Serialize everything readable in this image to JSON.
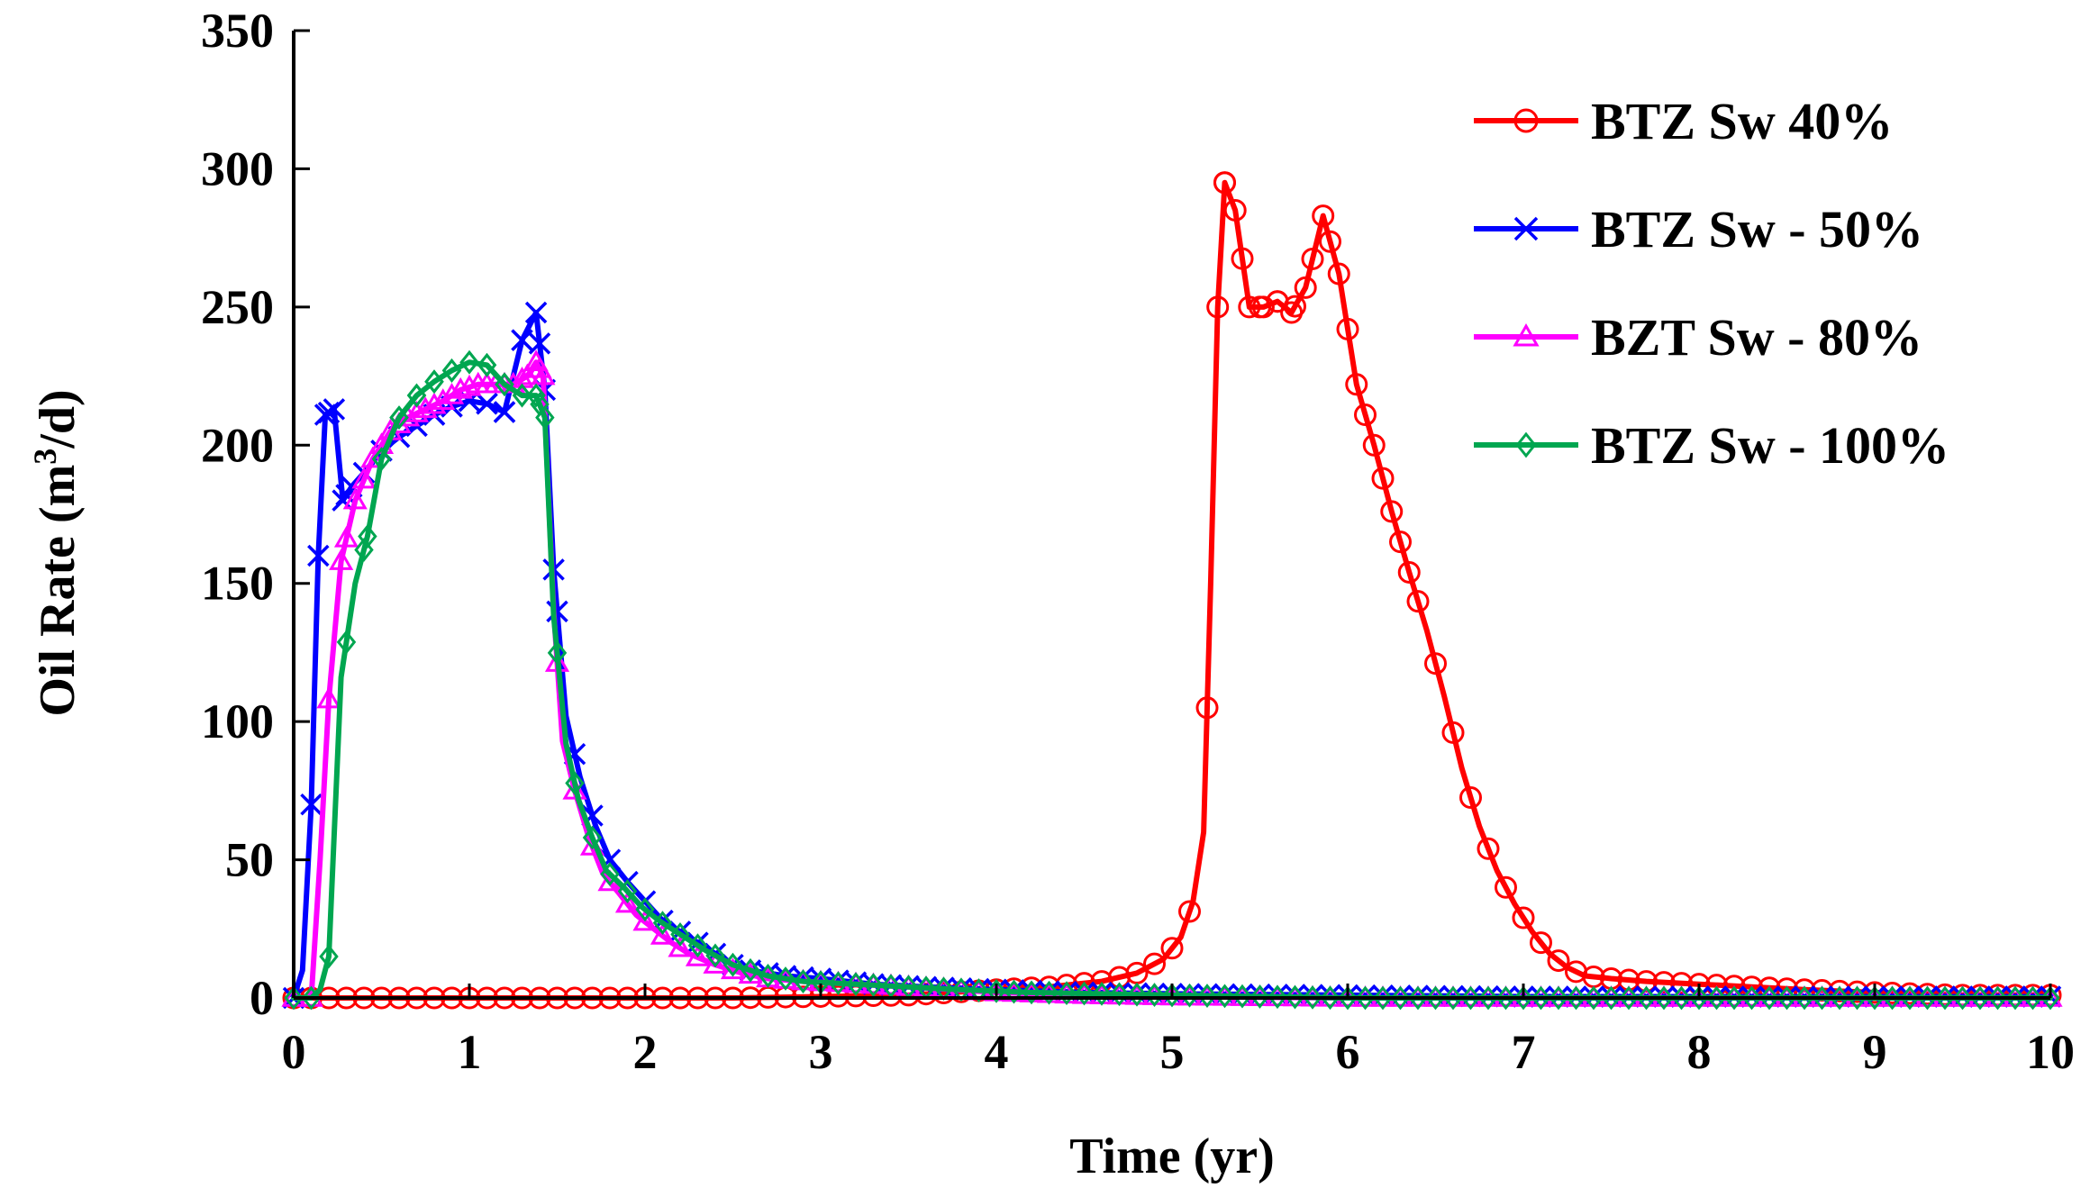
{
  "chart_data": {
    "type": "line",
    "title": "",
    "xlabel": "Time  (yr)",
    "ylabel": "Oil Rate (m³/d)",
    "ylabel_parts": {
      "pre": "Oil Rate (m",
      "sup": "3",
      "post": "/d)"
    },
    "xlim": [
      0,
      10
    ],
    "ylim": [
      0,
      350
    ],
    "xticks": [
      "0",
      "1",
      "2",
      "3",
      "4",
      "5",
      "6",
      "7",
      "8",
      "9",
      "10"
    ],
    "yticks": [
      "0",
      "50",
      "100",
      "150",
      "200",
      "250",
      "300",
      "350"
    ],
    "grid": false,
    "legend_position": "top-right",
    "series": [
      {
        "name": "BTZ Sw 40%",
        "color": "#ff0000",
        "marker": "circle",
        "points": [
          [
            0,
            0
          ],
          [
            0.2,
            0
          ],
          [
            0.5,
            0
          ],
          [
            1,
            0
          ],
          [
            1.5,
            0
          ],
          [
            2,
            0
          ],
          [
            2.5,
            0
          ],
          [
            3,
            0.5
          ],
          [
            3.5,
            1
          ],
          [
            4,
            3
          ],
          [
            4.3,
            4
          ],
          [
            4.6,
            6
          ],
          [
            4.8,
            9
          ],
          [
            4.95,
            14
          ],
          [
            5.05,
            22
          ],
          [
            5.12,
            35
          ],
          [
            5.18,
            60
          ],
          [
            5.22,
            150
          ],
          [
            5.26,
            250
          ],
          [
            5.3,
            295
          ],
          [
            5.36,
            285
          ],
          [
            5.44,
            250
          ],
          [
            5.52,
            250
          ],
          [
            5.6,
            252
          ],
          [
            5.68,
            248
          ],
          [
            5.76,
            257
          ],
          [
            5.86,
            283
          ],
          [
            5.95,
            262
          ],
          [
            6.05,
            222
          ],
          [
            6.15,
            200
          ],
          [
            6.25,
            176
          ],
          [
            6.35,
            154
          ],
          [
            6.45,
            133
          ],
          [
            6.55,
            109
          ],
          [
            6.65,
            83
          ],
          [
            6.75,
            62
          ],
          [
            6.85,
            46
          ],
          [
            6.95,
            34
          ],
          [
            7.05,
            24
          ],
          [
            7.15,
            16
          ],
          [
            7.25,
            11
          ],
          [
            7.35,
            8
          ],
          [
            7.5,
            7
          ],
          [
            7.7,
            6
          ],
          [
            8,
            5
          ],
          [
            8.3,
            4
          ],
          [
            8.6,
            3
          ],
          [
            9,
            2
          ],
          [
            9.5,
            1
          ],
          [
            10,
            1
          ]
        ]
      },
      {
        "name": "BTZ Sw - 50%",
        "color": "#0000ff",
        "marker": "x",
        "points": [
          [
            0,
            0
          ],
          [
            0.05,
            10
          ],
          [
            0.1,
            70
          ],
          [
            0.14,
            160
          ],
          [
            0.18,
            211
          ],
          [
            0.23,
            213
          ],
          [
            0.28,
            180
          ],
          [
            0.33,
            185
          ],
          [
            0.4,
            190
          ],
          [
            0.5,
            198
          ],
          [
            0.6,
            203
          ],
          [
            0.7,
            207
          ],
          [
            0.8,
            211
          ],
          [
            0.9,
            214
          ],
          [
            1,
            216
          ],
          [
            1.1,
            215
          ],
          [
            1.2,
            212
          ],
          [
            1.3,
            238
          ],
          [
            1.38,
            248
          ],
          [
            1.43,
            220
          ],
          [
            1.48,
            155
          ],
          [
            1.55,
            102
          ],
          [
            1.63,
            80
          ],
          [
            1.72,
            62
          ],
          [
            1.8,
            50
          ],
          [
            1.9,
            42
          ],
          [
            2,
            35
          ],
          [
            2.1,
            28
          ],
          [
            2.2,
            24
          ],
          [
            2.3,
            20
          ],
          [
            2.4,
            16
          ],
          [
            2.5,
            12
          ],
          [
            2.6,
            10
          ],
          [
            2.8,
            8
          ],
          [
            3,
            7
          ],
          [
            3.3,
            5
          ],
          [
            3.6,
            4
          ],
          [
            4,
            3
          ],
          [
            4.5,
            2
          ],
          [
            5,
            1.5
          ],
          [
            6,
            1
          ],
          [
            7,
            0.5
          ],
          [
            8,
            0.5
          ],
          [
            9,
            0.5
          ],
          [
            10,
            0.5
          ]
        ]
      },
      {
        "name": "BZT Sw - 80%",
        "color": "#ff00ff",
        "marker": "triangle",
        "points": [
          [
            0,
            0
          ],
          [
            0.1,
            0
          ],
          [
            0.15,
            50
          ],
          [
            0.2,
            108
          ],
          [
            0.27,
            158
          ],
          [
            0.35,
            180
          ],
          [
            0.45,
            195
          ],
          [
            0.55,
            205
          ],
          [
            0.65,
            210
          ],
          [
            0.75,
            213
          ],
          [
            0.85,
            216
          ],
          [
            0.95,
            220
          ],
          [
            1.05,
            222
          ],
          [
            1.15,
            222
          ],
          [
            1.25,
            222
          ],
          [
            1.33,
            225
          ],
          [
            1.38,
            230
          ],
          [
            1.42,
            225
          ],
          [
            1.48,
            140
          ],
          [
            1.53,
            93
          ],
          [
            1.6,
            75
          ],
          [
            1.68,
            58
          ],
          [
            1.76,
            45
          ],
          [
            1.85,
            38
          ],
          [
            1.95,
            30
          ],
          [
            2.05,
            25
          ],
          [
            2.15,
            20
          ],
          [
            2.25,
            16
          ],
          [
            2.4,
            12
          ],
          [
            2.55,
            9
          ],
          [
            2.7,
            7
          ],
          [
            2.9,
            6
          ],
          [
            3.2,
            5
          ],
          [
            3.5,
            4
          ],
          [
            4,
            2
          ],
          [
            4.5,
            1
          ],
          [
            5,
            0.5
          ],
          [
            6,
            0
          ],
          [
            7,
            0
          ],
          [
            8,
            0
          ],
          [
            9,
            0
          ],
          [
            10,
            0
          ]
        ]
      },
      {
        "name": "BTZ Sw - 100%",
        "color": "#00a650",
        "marker": "diamond",
        "points": [
          [
            0,
            0
          ],
          [
            0.1,
            0
          ],
          [
            0.15,
            3
          ],
          [
            0.2,
            15
          ],
          [
            0.27,
            116
          ],
          [
            0.35,
            150
          ],
          [
            0.42,
            167
          ],
          [
            0.5,
            195
          ],
          [
            0.6,
            210
          ],
          [
            0.7,
            218
          ],
          [
            0.8,
            223
          ],
          [
            0.9,
            227
          ],
          [
            1,
            230
          ],
          [
            1.1,
            229
          ],
          [
            1.2,
            222
          ],
          [
            1.3,
            218
          ],
          [
            1.38,
            218
          ],
          [
            1.43,
            210
          ],
          [
            1.48,
            138
          ],
          [
            1.55,
            92
          ],
          [
            1.62,
            72
          ],
          [
            1.7,
            58
          ],
          [
            1.78,
            46
          ],
          [
            1.88,
            40
          ],
          [
            1.98,
            33
          ],
          [
            2.08,
            28
          ],
          [
            2.2,
            23
          ],
          [
            2.35,
            17
          ],
          [
            2.5,
            12
          ],
          [
            2.7,
            8
          ],
          [
            2.9,
            6
          ],
          [
            3.2,
            5
          ],
          [
            3.5,
            4
          ],
          [
            3.8,
            3
          ],
          [
            4.2,
            2
          ],
          [
            5,
            1
          ],
          [
            6,
            0
          ],
          [
            7,
            0
          ],
          [
            8,
            0
          ],
          [
            9,
            0
          ],
          [
            10,
            0
          ]
        ]
      }
    ]
  }
}
